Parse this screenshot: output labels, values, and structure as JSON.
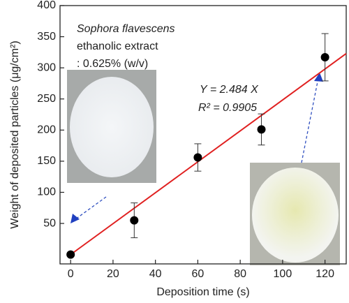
{
  "chart_data": {
    "type": "scatter",
    "x_label": "Deposition time (s)",
    "y_label": "Weight of deposited particles (μg/cm²)",
    "x": [
      0,
      30,
      60,
      90,
      120
    ],
    "series": [
      {
        "color": "#000000",
        "values": [
          0,
          55,
          156,
          201,
          317
        ],
        "errors": [
          0,
          28,
          22,
          25,
          38
        ]
      }
    ],
    "fit": {
      "slope": 2.484,
      "color": "#e02020"
    },
    "annotations": [
      "Sophora flavescens",
      "ethanolic extract",
      ": 0.625% (w/v)",
      "Y = 2.484 X",
      "R² = 0.9905"
    ],
    "xlim": [
      -5,
      130
    ],
    "ylim": [
      -15,
      400
    ],
    "xticks": [
      0,
      20,
      40,
      60,
      80,
      100,
      120
    ],
    "yticks": [
      50,
      100,
      150,
      200,
      250,
      300,
      350,
      400
    ]
  }
}
